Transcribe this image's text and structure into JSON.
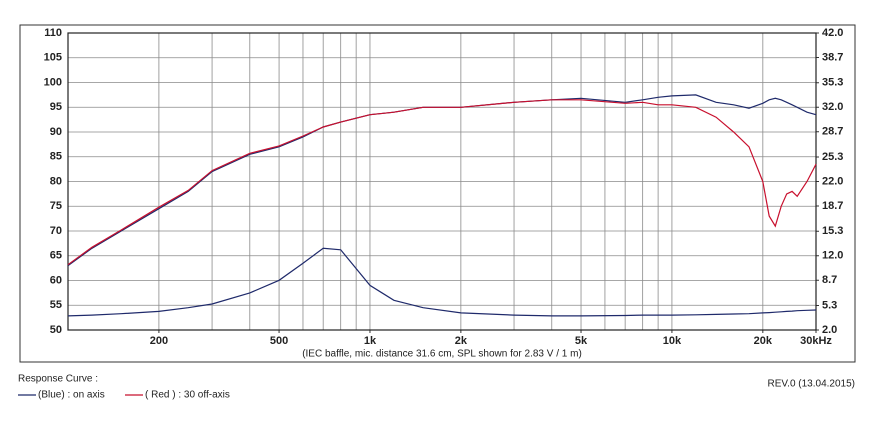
{
  "chart_data": {
    "type": "line",
    "caption": "(IEC baffle, mic. distance 31.6 cm, SPL shown for 2.83 V / 1 m)",
    "legend_title": "Response Curve :",
    "revision": "REV.0 (13.04.2015)",
    "xscale": "log",
    "grid": true,
    "xlim": [
      100,
      30000
    ],
    "xticks": [
      200,
      500,
      {
        "value": 1000,
        "label": "1k"
      },
      {
        "value": 2000,
        "label": "2k"
      },
      {
        "value": 5000,
        "label": "5k"
      },
      {
        "value": 10000,
        "label": "10k"
      },
      {
        "value": 20000,
        "label": "20k"
      },
      {
        "value": 30000,
        "label": "30kHz"
      }
    ],
    "xgrid": [
      200,
      300,
      400,
      500,
      600,
      700,
      800,
      900,
      1000,
      2000,
      3000,
      4000,
      5000,
      6000,
      7000,
      8000,
      9000,
      10000,
      20000
    ],
    "ylim": [
      50,
      110
    ],
    "yticks": [
      50,
      55,
      60,
      65,
      70,
      75,
      80,
      85,
      90,
      95,
      100,
      105,
      110
    ],
    "y2lim": [
      2,
      42
    ],
    "y2ticks": [
      {
        "value": 2,
        "label": "2.0"
      },
      5.3,
      8.7,
      {
        "value": 12,
        "label": "12.0"
      },
      15.3,
      18.7,
      {
        "value": 22,
        "label": "22.0"
      },
      25.3,
      28.7,
      {
        "value": 32,
        "label": "32.0"
      },
      35.3,
      38.7,
      {
        "value": 42,
        "label": "42.0"
      }
    ],
    "x": [
      100,
      120,
      150,
      200,
      250,
      300,
      400,
      500,
      600,
      700,
      800,
      1000,
      1200,
      1500,
      2000,
      3000,
      4000,
      5000,
      7000,
      8000,
      9000,
      10000,
      12000,
      14000,
      16000,
      18000,
      20000,
      21000,
      22000,
      23000,
      24000,
      25000,
      26000,
      28000,
      30000
    ],
    "series": [
      {
        "name": "(Blue) : on axis",
        "color": "#1f2a6b",
        "values": [
          63,
          66.5,
          70,
          74.5,
          78,
          82,
          85.5,
          87,
          89,
          91,
          92,
          93.5,
          94,
          95,
          95,
          96,
          96.5,
          96.8,
          96,
          96.5,
          97,
          97.3,
          97.5,
          96,
          95.5,
          94.8,
          95.8,
          96.5,
          96.8,
          96.5,
          96,
          95.5,
          95,
          94,
          93.5
        ]
      },
      {
        "name": "( Red ) : 30 off-axis",
        "color": "#c8102e",
        "values": [
          63.2,
          66.7,
          70.2,
          74.8,
          78.2,
          82.2,
          85.7,
          87.2,
          89.2,
          91,
          92,
          93.5,
          94,
          95,
          95,
          96,
          96.5,
          96.5,
          95.8,
          96,
          95.5,
          95.5,
          95,
          93,
          90,
          87,
          80,
          73,
          71,
          75,
          77.5,
          78,
          77,
          80,
          83.5
        ]
      },
      {
        "color": "#1f2a6b",
        "axis": "y2",
        "values": [
          3.9,
          4,
          4.2,
          4.5,
          5,
          5.5,
          7,
          8.7,
          11,
          13,
          12.8,
          8,
          6,
          5,
          4.3,
          4,
          3.9,
          3.9,
          3.95,
          4,
          4,
          4,
          4.05,
          4.1,
          4.15,
          4.2,
          4.3,
          4.35,
          4.4,
          4.45,
          4.5,
          4.55,
          4.6,
          4.65,
          4.7
        ]
      }
    ]
  }
}
